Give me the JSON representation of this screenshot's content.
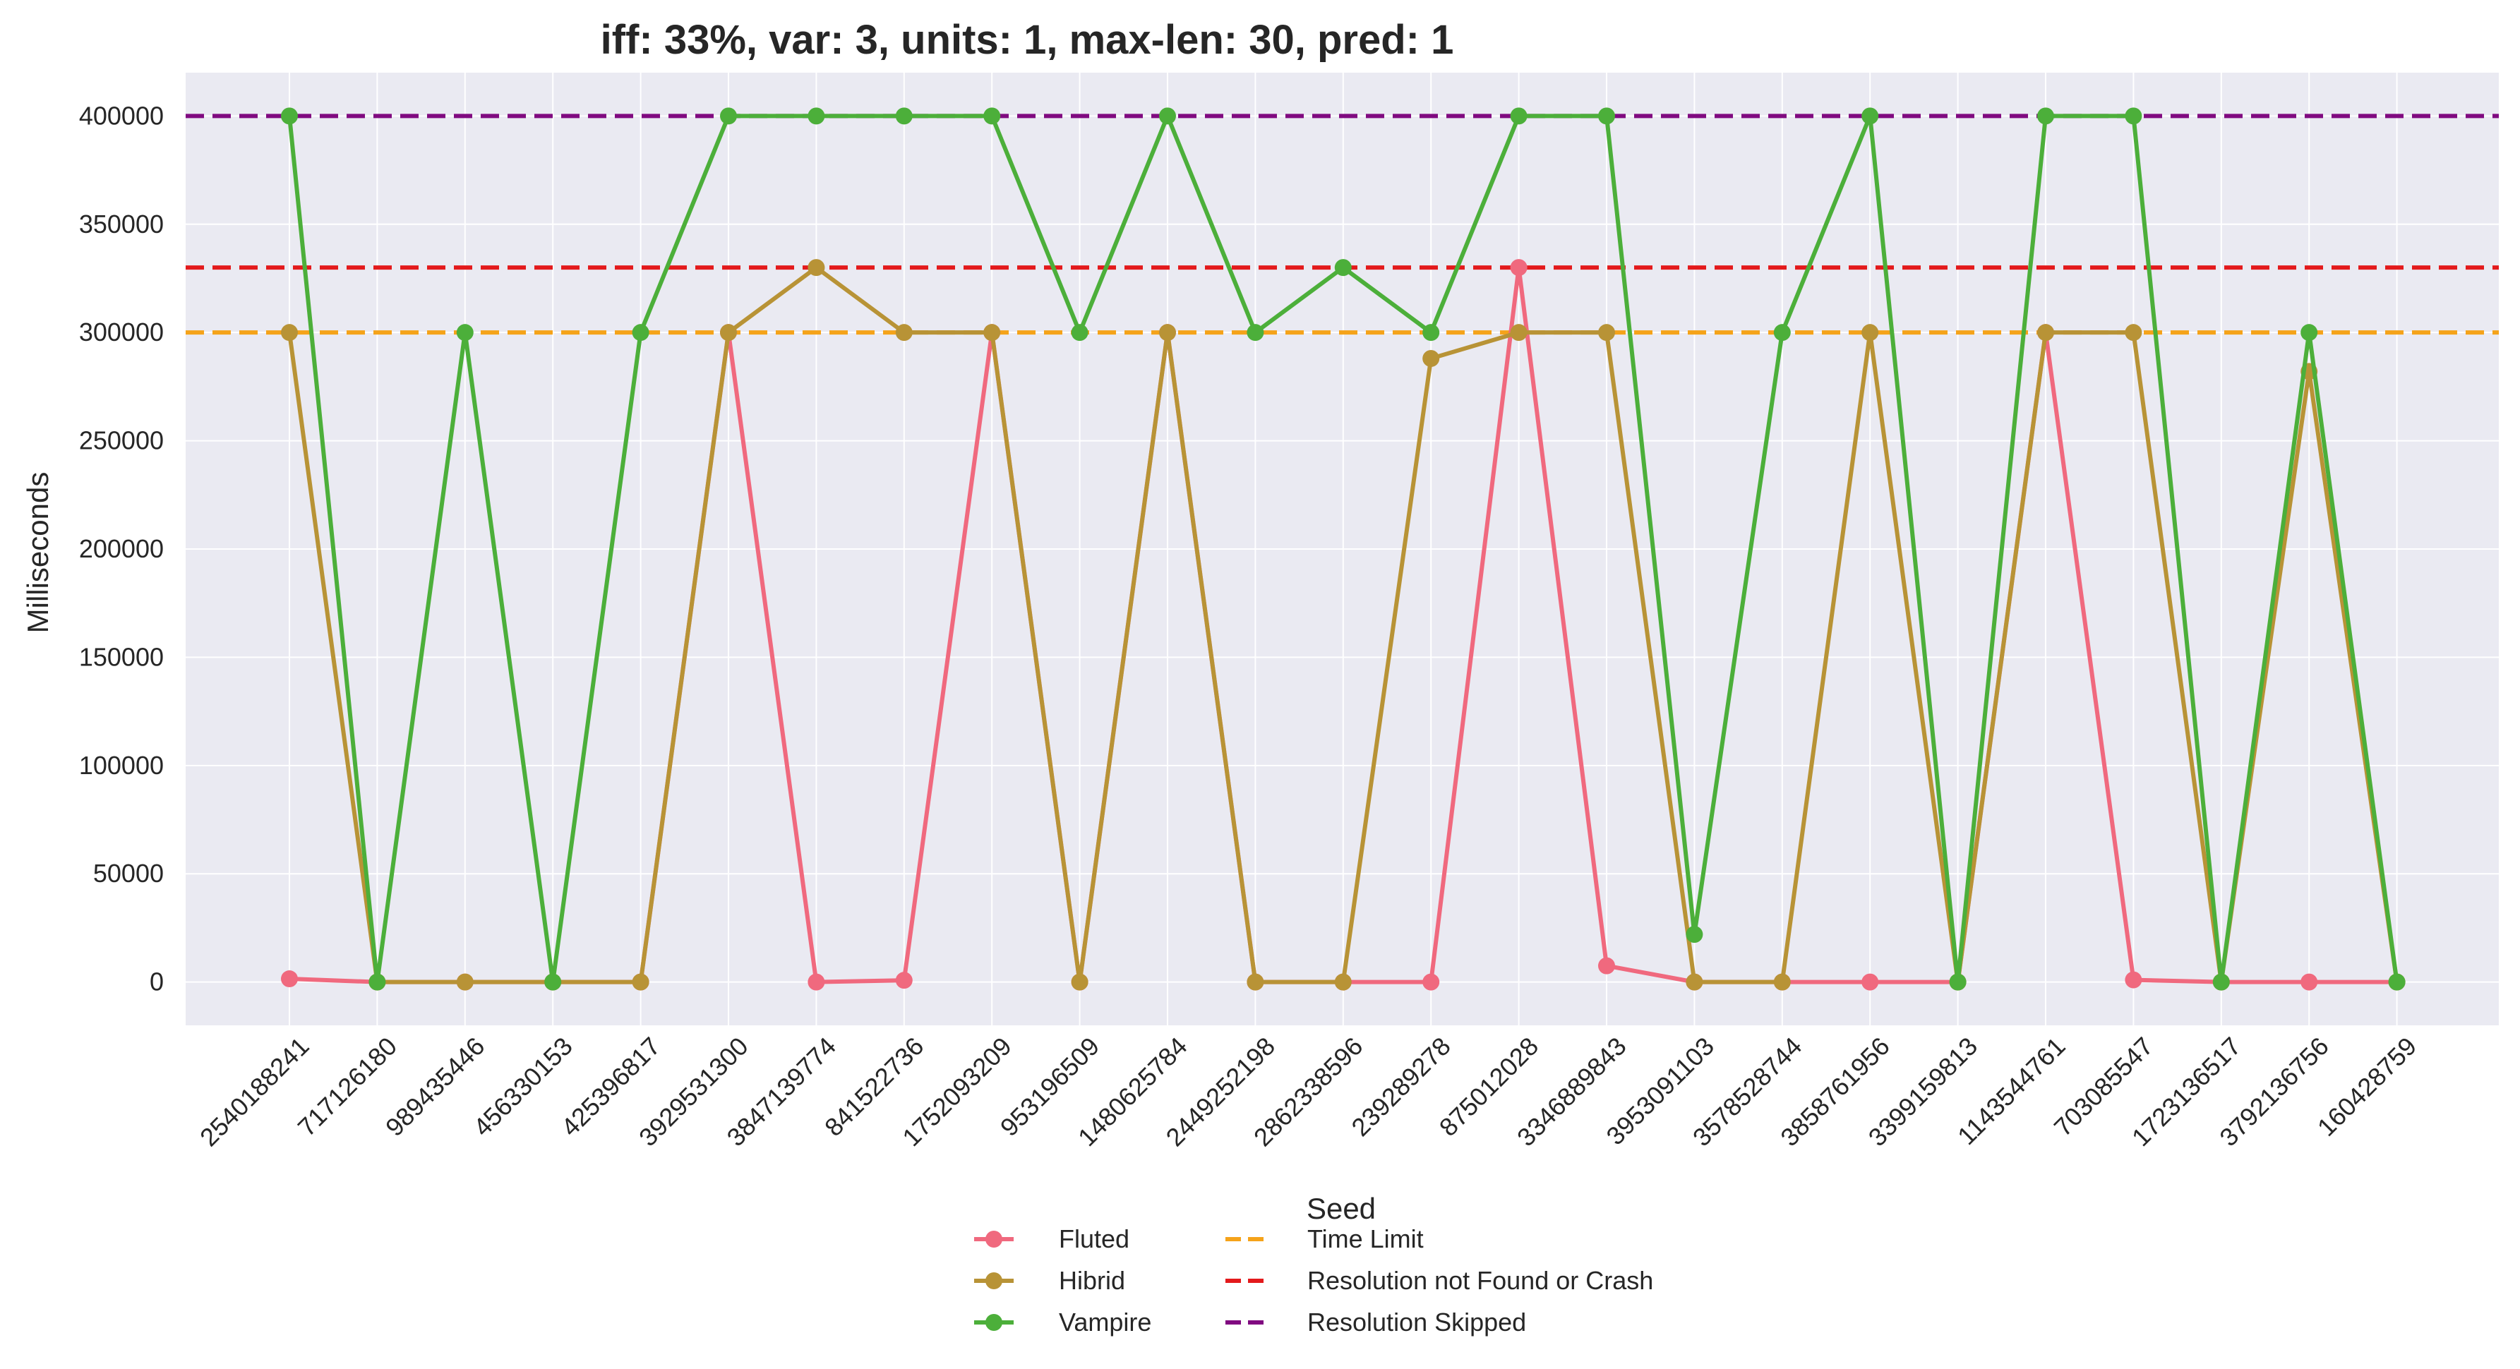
{
  "chart_data": {
    "type": "line",
    "title": "iff: 33%, var: 3, units: 1, max-len: 30, pred: 1",
    "xlabel": "Seed",
    "ylabel": "Milliseconds",
    "ylim": [
      -20000,
      420000
    ],
    "yticks": [
      0,
      50000,
      100000,
      150000,
      200000,
      250000,
      300000,
      350000,
      400000
    ],
    "grid": true,
    "legend_position": "bottom-center",
    "categories": [
      "2540188241",
      "717126180",
      "989435446",
      "456330153",
      "425396817",
      "3929531300",
      "3847139774",
      "841522736",
      "1752093209",
      "953196509",
      "1480625784",
      "2449252198",
      "2862338596",
      "239289278",
      "875012028",
      "3346889843",
      "3953091103",
      "3578528744",
      "3858761956",
      "3399159813",
      "1143544761",
      "703085547",
      "1723136517",
      "3792136756",
      "160428759"
    ],
    "series": [
      {
        "name": "Fluted",
        "color": "#f0697e",
        "values": [
          1500,
          0,
          0,
          0,
          0,
          300000,
          0,
          800,
          300000,
          0,
          300000,
          0,
          0,
          0,
          330000,
          7500,
          0,
          0,
          0,
          0,
          300000,
          1000,
          0,
          0,
          0
        ]
      },
      {
        "name": "Hibrid",
        "color": "#b89336",
        "values": [
          300000,
          0,
          0,
          0,
          0,
          300000,
          330000,
          300000,
          300000,
          0,
          300000,
          0,
          0,
          288000,
          300000,
          300000,
          0,
          0,
          300000,
          0,
          300000,
          300000,
          0,
          282000,
          0
        ]
      },
      {
        "name": "Vampire",
        "color": "#4caf3a",
        "values": [
          400000,
          0,
          300000,
          0,
          300000,
          400000,
          400000,
          400000,
          400000,
          300000,
          400000,
          300000,
          330000,
          300000,
          400000,
          400000,
          22000,
          300000,
          400000,
          0,
          400000,
          400000,
          0,
          300000,
          0
        ]
      }
    ],
    "reference_lines": [
      {
        "name": "Time Limit",
        "value": 300000,
        "color": "#f5a31a"
      },
      {
        "name": "Resolution not Found or Crash",
        "value": 330000,
        "color": "#e31a1c"
      },
      {
        "name": "Resolution Skipped",
        "value": 400000,
        "color": "#800a80"
      }
    ]
  }
}
